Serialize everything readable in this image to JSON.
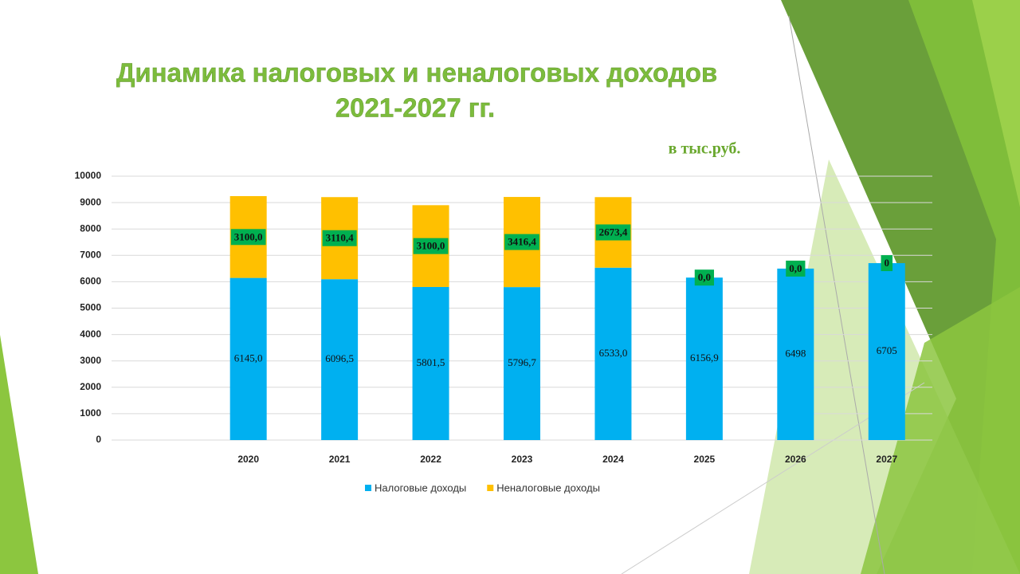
{
  "chart_data": {
    "type": "stacked_bar",
    "title": [
      "Динамика налоговых и неналоговых доходов",
      "2021-2027 гг."
    ],
    "unit_note": "в тыс.руб.",
    "categories": [
      null,
      "2020",
      "2021",
      "2022",
      "2023",
      "2024",
      "2025",
      "2026",
      "2027"
    ],
    "series": [
      {
        "name": "Налоговые доходы",
        "color": "#00b0f0",
        "values": [
          null,
          6145.0,
          6096.5,
          5801.5,
          5796.7,
          6533.0,
          6156.9,
          6498,
          6705
        ],
        "value_labels": [
          null,
          "6145,0",
          "6096,5",
          "5801,5",
          "5796,7",
          "6533,0",
          "6156,9",
          "6498",
          "6705"
        ]
      },
      {
        "name": "Неналоговые доходы",
        "color": "#ffc000",
        "values": [
          null,
          3100.0,
          3110.4,
          3100.0,
          3416.4,
          2673.4,
          0.0,
          0.0,
          0
        ],
        "value_labels": [
          null,
          "3100,0",
          "3110,4",
          "3100,0",
          "3416,4",
          "2673,4",
          "0,0",
          "0,0",
          "0"
        ]
      }
    ],
    "ylim": [
      0,
      10000
    ],
    "yticks": [
      0,
      1000,
      2000,
      3000,
      4000,
      5000,
      6000,
      7000,
      8000,
      9000,
      10000
    ],
    "grid": true,
    "legend": "bottom"
  }
}
